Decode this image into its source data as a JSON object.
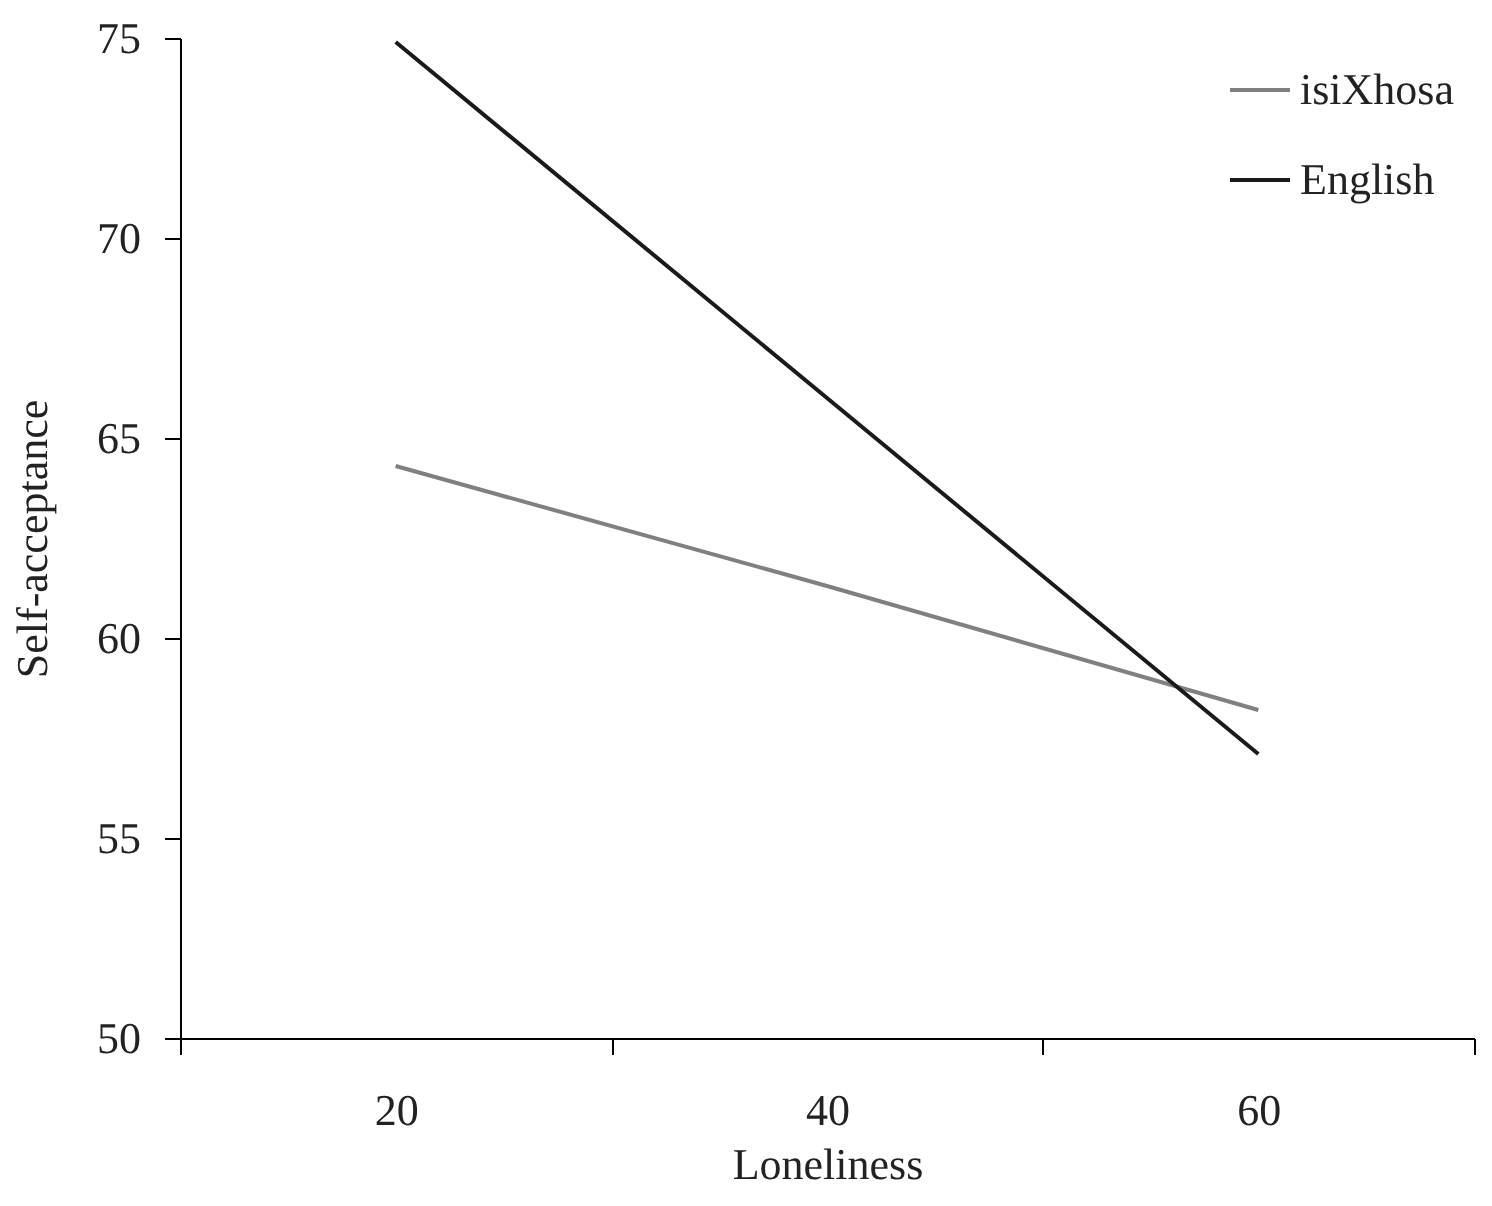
{
  "chart_data": {
    "type": "line",
    "xlabel": "Loneliness",
    "ylabel": "Self-acceptance",
    "categories": [
      "20",
      "40",
      "60"
    ],
    "series": [
      {
        "name": "isiXhosa",
        "color": "#808080",
        "values": [
          64.3,
          61.3,
          58.2
        ]
      },
      {
        "name": "English",
        "color": "#1a1a1a",
        "values": [
          74.9,
          66.0,
          57.1
        ]
      }
    ],
    "ylim": [
      50,
      75
    ],
    "yticks": [
      50,
      55,
      60,
      65,
      70,
      75
    ],
    "grid": false,
    "legend": "top right",
    "marker": "none",
    "line_style": "solid"
  }
}
